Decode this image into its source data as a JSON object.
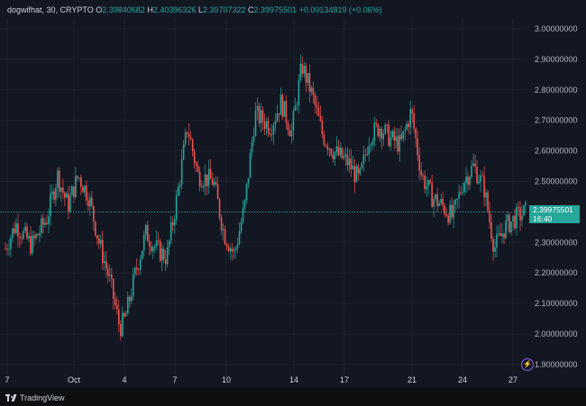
{
  "legend": {
    "symbol": "dogwifhat, 30, CRYPTO",
    "open_key": "O",
    "open": "2.39840682",
    "high_key": "H",
    "high": "2.40396326",
    "low_key": "L",
    "low": "2.39707322",
    "close_key": "C",
    "close": "2.39975501",
    "change": "+0.00134819 (+0.06%)"
  },
  "price_tag": {
    "price": "2.39975501",
    "countdown": "16:40"
  },
  "colors": {
    "up": "#26a69a",
    "down": "#ef5350",
    "bg": "#131722",
    "grid": "#1e222d",
    "accent": "#26a69a"
  },
  "footer": {
    "brand": "TradingView",
    "logo_icon": "tradingview-logo-icon"
  },
  "extra_icons": [
    "lightning-icon"
  ],
  "chart_data": {
    "type": "candlestick",
    "y_axis_labels": [
      "3.00000000",
      "2.90000000",
      "2.80000000",
      "2.70000000",
      "2.60000000",
      "2.50000000",
      "2.40000000",
      "2.30000000",
      "2.20000000",
      "2.10000000",
      "2.00000000",
      "1.90000000"
    ],
    "x_axis_labels": [
      "7",
      "Oct",
      "4",
      "7",
      "10",
      "14",
      "17",
      "21",
      "24",
      "27"
    ],
    "ylim": [
      1.88,
      3.03
    ],
    "last_price": 2.39975501,
    "anchors": [
      {
        "x": 0,
        "y": 2.28
      },
      {
        "x": 0.02,
        "y": 2.36
      },
      {
        "x": 0.05,
        "y": 2.29
      },
      {
        "x": 0.08,
        "y": 2.38
      },
      {
        "x": 0.1,
        "y": 2.52
      },
      {
        "x": 0.12,
        "y": 2.42
      },
      {
        "x": 0.14,
        "y": 2.52
      },
      {
        "x": 0.16,
        "y": 2.45
      },
      {
        "x": 0.18,
        "y": 2.3
      },
      {
        "x": 0.2,
        "y": 2.18
      },
      {
        "x": 0.22,
        "y": 2.02
      },
      {
        "x": 0.23,
        "y": 2.05
      },
      {
        "x": 0.25,
        "y": 2.2
      },
      {
        "x": 0.27,
        "y": 2.33
      },
      {
        "x": 0.29,
        "y": 2.28
      },
      {
        "x": 0.31,
        "y": 2.25
      },
      {
        "x": 0.33,
        "y": 2.45
      },
      {
        "x": 0.35,
        "y": 2.68
      },
      {
        "x": 0.37,
        "y": 2.52
      },
      {
        "x": 0.4,
        "y": 2.5
      },
      {
        "x": 0.42,
        "y": 2.33
      },
      {
        "x": 0.44,
        "y": 2.26
      },
      {
        "x": 0.46,
        "y": 2.42
      },
      {
        "x": 0.48,
        "y": 2.72
      },
      {
        "x": 0.51,
        "y": 2.68
      },
      {
        "x": 0.53,
        "y": 2.76
      },
      {
        "x": 0.55,
        "y": 2.66
      },
      {
        "x": 0.57,
        "y": 2.88
      },
      {
        "x": 0.59,
        "y": 2.78
      },
      {
        "x": 0.61,
        "y": 2.65
      },
      {
        "x": 0.63,
        "y": 2.6
      },
      {
        "x": 0.66,
        "y": 2.56
      },
      {
        "x": 0.68,
        "y": 2.5
      },
      {
        "x": 0.7,
        "y": 2.65
      },
      {
        "x": 0.72,
        "y": 2.68
      },
      {
        "x": 0.74,
        "y": 2.64
      },
      {
        "x": 0.76,
        "y": 2.62
      },
      {
        "x": 0.78,
        "y": 2.73
      },
      {
        "x": 0.8,
        "y": 2.52
      },
      {
        "x": 0.82,
        "y": 2.45
      },
      {
        "x": 0.84,
        "y": 2.42
      },
      {
        "x": 0.86,
        "y": 2.38
      },
      {
        "x": 0.88,
        "y": 2.5
      },
      {
        "x": 0.9,
        "y": 2.55
      },
      {
        "x": 0.92,
        "y": 2.48
      },
      {
        "x": 0.94,
        "y": 2.28
      },
      {
        "x": 0.96,
        "y": 2.35
      },
      {
        "x": 0.98,
        "y": 2.38
      },
      {
        "x": 1,
        "y": 2.4
      }
    ]
  }
}
